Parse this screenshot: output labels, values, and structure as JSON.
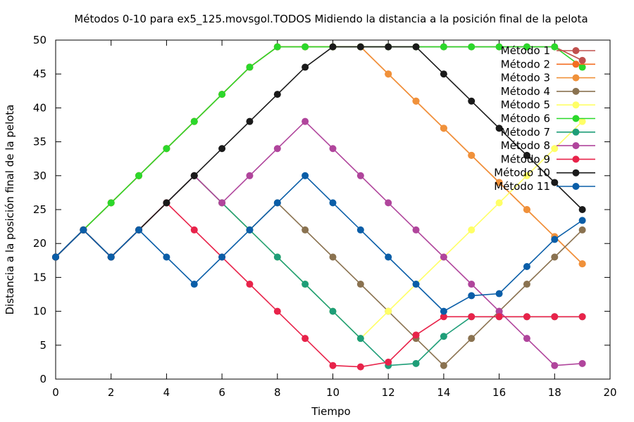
{
  "chart_data": {
    "type": "line",
    "title": "Métodos 0-10 para ex5_125.movsgol.TODOS Midiendo la distancia a la posición final de la pelota",
    "xlabel": "Tiempo",
    "ylabel": "Distancia a la posición final de la pelota",
    "xlim": [
      0,
      20
    ],
    "ylim": [
      0,
      50
    ],
    "xticks": [
      0,
      2,
      4,
      6,
      8,
      10,
      12,
      14,
      16,
      18,
      20
    ],
    "yticks": [
      0,
      5,
      10,
      15,
      20,
      25,
      30,
      35,
      40,
      45,
      50
    ],
    "grid": false,
    "legend_position": "top-right",
    "series": [
      {
        "name": "Método 1",
        "color": "#c0504d",
        "x": [
          0,
          1,
          2,
          3,
          4,
          5,
          6,
          7,
          8,
          9,
          10,
          11,
          12,
          13,
          14,
          15,
          16,
          17,
          18,
          19
        ],
        "y": [
          18,
          22,
          26,
          30,
          34,
          38,
          42,
          46,
          49,
          49,
          49,
          49,
          49,
          49,
          49,
          49,
          49,
          49,
          49,
          47
        ]
      },
      {
        "name": "Método 2",
        "color": "#f36d21",
        "x": [
          0,
          1,
          2,
          3,
          4,
          5,
          6,
          7,
          8,
          9,
          10,
          11,
          12,
          13,
          14,
          15,
          16,
          17,
          18,
          19
        ],
        "y": [
          18,
          22,
          26,
          30,
          34,
          38,
          42,
          46,
          49,
          49,
          49,
          49,
          45,
          41,
          37,
          33,
          29,
          25,
          21,
          17
        ]
      },
      {
        "name": "Método 3",
        "color": "#f0913a",
        "x": [
          0,
          1,
          2,
          3,
          4,
          5,
          6,
          7,
          8,
          9,
          10,
          11,
          12,
          13,
          14,
          15,
          16,
          17,
          18,
          19
        ],
        "y": [
          18,
          22,
          26,
          30,
          34,
          38,
          42,
          46,
          49,
          49,
          49,
          49,
          45,
          41,
          37,
          33,
          29,
          25,
          21,
          17
        ]
      },
      {
        "name": "Método 4",
        "color": "#8a7250",
        "x": [
          0,
          1,
          2,
          3,
          4,
          5,
          6,
          7,
          8,
          9,
          10,
          11,
          12,
          13,
          14,
          15,
          16,
          17,
          18,
          19
        ],
        "y": [
          18,
          22,
          18,
          22,
          26,
          30,
          26,
          22,
          26,
          22,
          18,
          14,
          10,
          6,
          2,
          6,
          10,
          14,
          18,
          22
        ]
      },
      {
        "name": "Método 5",
        "color": "#ffff66",
        "x": [
          0,
          1,
          2,
          3,
          4,
          5,
          6,
          7,
          8,
          9,
          10,
          11,
          12,
          13,
          14,
          15,
          16,
          17,
          18,
          19
        ],
        "y": [
          18,
          22,
          18,
          22,
          26,
          30,
          26,
          22,
          18,
          14,
          10,
          6,
          10,
          14,
          18,
          22,
          26,
          30,
          34,
          38
        ]
      },
      {
        "name": "Método 6",
        "color": "#2bd82b",
        "x": [
          0,
          1,
          2,
          3,
          4,
          5,
          6,
          7,
          8,
          9,
          10,
          11,
          12,
          13,
          14,
          15,
          16,
          17,
          18,
          19
        ],
        "y": [
          18,
          22,
          26,
          30,
          34,
          38,
          42,
          46,
          49,
          49,
          49,
          49,
          49,
          49,
          49,
          49,
          49,
          49,
          49,
          46
        ]
      },
      {
        "name": "Método 7",
        "color": "#1e9e78",
        "x": [
          0,
          1,
          2,
          3,
          4,
          5,
          6,
          7,
          8,
          9,
          10,
          11,
          12,
          13,
          14,
          15,
          16,
          17,
          18,
          19
        ],
        "y": [
          18,
          22,
          18,
          22,
          26,
          30,
          26,
          22,
          18,
          14,
          10,
          6,
          2,
          2.3,
          6.3,
          9.2,
          9.2,
          9.2,
          9.2,
          9.2
        ]
      },
      {
        "name": "Método 8",
        "color": "#b0459c",
        "x": [
          0,
          1,
          2,
          3,
          4,
          5,
          6,
          7,
          8,
          9,
          10,
          11,
          12,
          13,
          14,
          15,
          16,
          17,
          18,
          19
        ],
        "y": [
          18,
          22,
          18,
          22,
          26,
          30,
          26,
          30,
          34,
          38,
          34,
          30,
          26,
          22,
          18,
          14,
          10,
          6,
          2,
          2.3
        ]
      },
      {
        "name": "Método 9",
        "color": "#e8234a",
        "x": [
          0,
          1,
          2,
          3,
          4,
          5,
          6,
          7,
          8,
          9,
          10,
          11,
          12,
          13,
          14,
          15,
          16,
          17,
          18,
          19
        ],
        "y": [
          18,
          22,
          18,
          22,
          26,
          22,
          18,
          14,
          10,
          6,
          2,
          1.8,
          2.5,
          6.5,
          9.2,
          9.2,
          9.2,
          9.2,
          9.2,
          9.2
        ]
      },
      {
        "name": "Método 10",
        "color": "#1a1a1a",
        "x": [
          0,
          1,
          2,
          3,
          4,
          5,
          6,
          7,
          8,
          9,
          10,
          11,
          12,
          13,
          14,
          15,
          16,
          17,
          18,
          19
        ],
        "y": [
          18,
          22,
          18,
          22,
          26,
          30,
          34,
          38,
          42,
          46,
          49,
          49,
          49,
          49,
          45,
          41,
          37,
          33,
          29,
          25
        ]
      },
      {
        "name": "Método 11",
        "color": "#0a5ea8",
        "x": [
          0,
          1,
          2,
          3,
          4,
          5,
          6,
          7,
          8,
          9,
          10,
          11,
          12,
          13,
          14,
          15,
          16,
          17,
          18,
          19
        ],
        "y": [
          18,
          22,
          18,
          22,
          18,
          14,
          18,
          22,
          26,
          30,
          26,
          22,
          18,
          14,
          10,
          12.3,
          12.6,
          16.6,
          20.6,
          23.4
        ]
      }
    ]
  }
}
